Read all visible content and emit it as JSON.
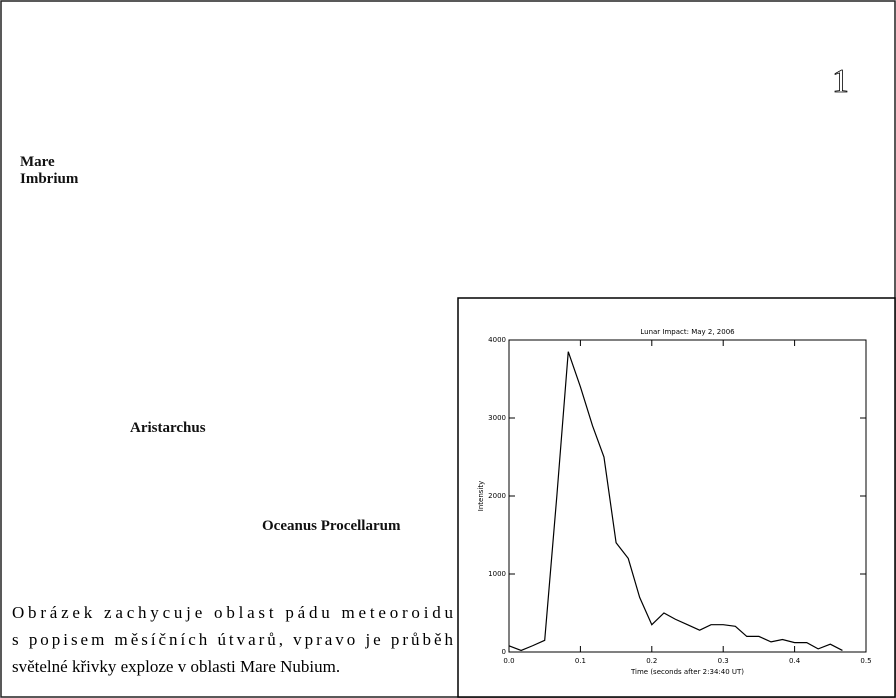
{
  "page_number": "1",
  "labels": [
    {
      "lines": [
        "Mare",
        "Imbrium"
      ]
    },
    {
      "lines": [
        "Aristarchus"
      ]
    },
    {
      "lines": [
        "Oceanus Procellarum"
      ]
    }
  ],
  "caption": [
    "Obrázek zachycuje oblast pádu meteoroidu",
    "s popisem měsíčních útvarů, vpravo je průběh",
    "světelné křivky exploze v oblasti Mare Nubium."
  ],
  "chart_data": {
    "type": "line",
    "title": "Lunar Impact: May 2, 2006",
    "x_label": "Time (seconds after 2:34:40 UT)",
    "y_label": "Intensity",
    "x": [
      0,
      0.017,
      0.033,
      0.05,
      0.067,
      0.083,
      0.1,
      0.117,
      0.133,
      0.15,
      0.167,
      0.183,
      0.2,
      0.217,
      0.233,
      0.25,
      0.267,
      0.283,
      0.3,
      0.317,
      0.333,
      0.35,
      0.367,
      0.383,
      0.4,
      0.417,
      0.433,
      0.45,
      0.467
    ],
    "values": [
      80,
      20,
      80,
      150,
      2000,
      3850,
      3400,
      2900,
      2500,
      1400,
      1200,
      700,
      350,
      500,
      420,
      350,
      280,
      350,
      350,
      330,
      200,
      200,
      130,
      160,
      120,
      120,
      40,
      100,
      20
    ],
    "color": "#000000",
    "xlim": [
      0,
      0.5
    ],
    "xticks": [
      {
        "value": 0,
        "label": "0.0"
      },
      0.1,
      0.2,
      0.3,
      0.4,
      0.5
    ],
    "ylim": [
      0,
      4000
    ],
    "yticks": [
      0,
      1000,
      2000,
      3000,
      4000
    ]
  }
}
